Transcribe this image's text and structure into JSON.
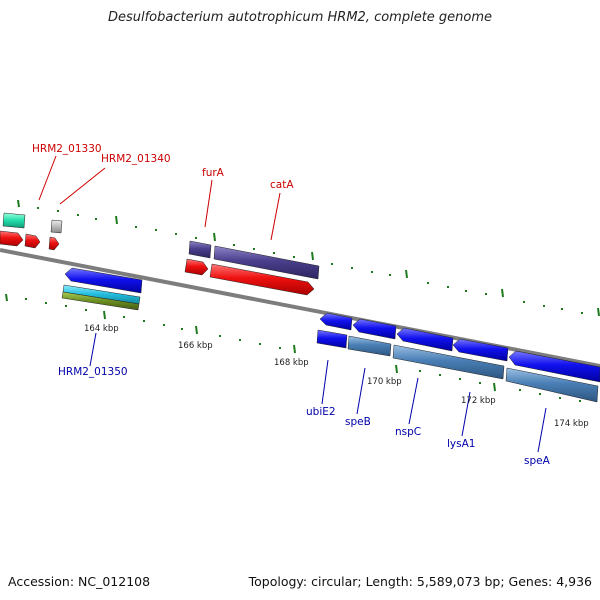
{
  "title": "Desulfobacterium autotrophicum HRM2, complete genome",
  "footer": {
    "accession": "Accession: NC_012108",
    "stats": "Topology: circular; Length: 5,589,073 bp; Genes: 4,936"
  },
  "colors": {
    "forward_label": "#cc0000",
    "reverse_label": "#0000aa",
    "backbone": "#808080",
    "tick": "#1e7a1e",
    "red": "#ee1111",
    "blue": "#1111ee",
    "purple": "#4a3f8c",
    "steel": "#4a7fb5",
    "cyan": "#22bbdd",
    "olive": "#6b8e23",
    "mint": "#22ddaa",
    "grey": "#bbbbbb"
  },
  "scale_labels": [
    "164 kbp",
    "166 kbp",
    "168 kbp",
    "170 kbp",
    "172 kbp",
    "174 kbp"
  ],
  "forward_genes": [
    "HRM2_01330",
    "HRM2_01340",
    "furA",
    "catA"
  ],
  "reverse_genes": [
    "HRM2_01350",
    "ubiE2",
    "speB",
    "nspC",
    "lysA1",
    "speA"
  ]
}
